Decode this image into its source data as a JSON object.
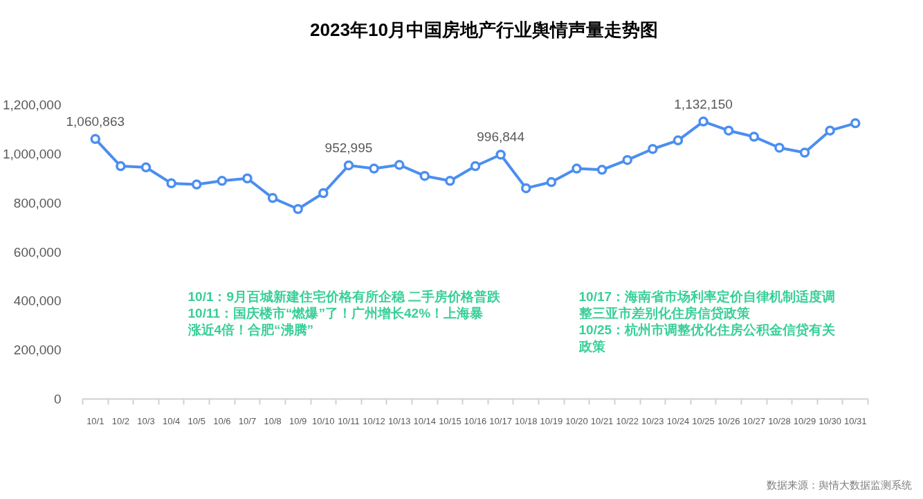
{
  "chart_data": {
    "type": "line",
    "title": "2023年10月中国房地产行业舆情声量走势图",
    "categories": [
      "10/1",
      "10/2",
      "10/3",
      "10/4",
      "10/5",
      "10/6",
      "10/7",
      "10/8",
      "10/9",
      "10/10",
      "10/11",
      "10/12",
      "10/13",
      "10/14",
      "10/15",
      "10/16",
      "10/17",
      "10/18",
      "10/19",
      "10/20",
      "10/21",
      "10/22",
      "10/23",
      "10/24",
      "10/25",
      "10/26",
      "10/27",
      "10/28",
      "10/29",
      "10/30",
      "10/31"
    ],
    "series": [
      {
        "color": "#4b8ef0",
        "values": [
          1060863,
          950000,
          945000,
          880000,
          875000,
          890000,
          900000,
          820000,
          775000,
          840000,
          952995,
          940000,
          955000,
          910000,
          890000,
          950000,
          996844,
          860000,
          885000,
          940000,
          935000,
          975000,
          1020000,
          1055000,
          1132150,
          1095000,
          1070000,
          1025000,
          1005000,
          1095000,
          1125000
        ],
        "value_labels": [
          "1,060,863",
          null,
          null,
          null,
          null,
          null,
          null,
          null,
          null,
          null,
          "952,995",
          null,
          null,
          null,
          null,
          null,
          "996,844",
          null,
          null,
          null,
          null,
          null,
          null,
          null,
          "1,132,150",
          null,
          null,
          null,
          null,
          null,
          null
        ]
      }
    ],
    "ylim": [
      0,
      1200000
    ],
    "yticks": [
      0,
      {
        "value": 200000,
        "label": "200,000"
      },
      {
        "value": 400000,
        "label": "400,000"
      },
      {
        "value": 600000,
        "label": "600,000"
      },
      {
        "value": 800000,
        "label": "800,000"
      },
      {
        "value": 1000000,
        "label": "1,000,000"
      },
      {
        "value": 1200000,
        "label": "1,200,000"
      }
    ],
    "grid": false,
    "marker": "circle",
    "line_style": "solid",
    "annotations": [
      "10/1：9月百城新建住宅价格有所企稳 二手房价格普跌",
      "10/11：国庆楼市“燃爆”了！广州增长42%！上海暴涨近4倍！合肥“沸腾”",
      "10/17：海南省市场利率定价自律机制适度调整三亚市差别化住房信贷政策",
      "10/25：杭州市调整优化住房公积金信贷有关政策",
      "数据来源：舆情大数据监测系统"
    ]
  }
}
